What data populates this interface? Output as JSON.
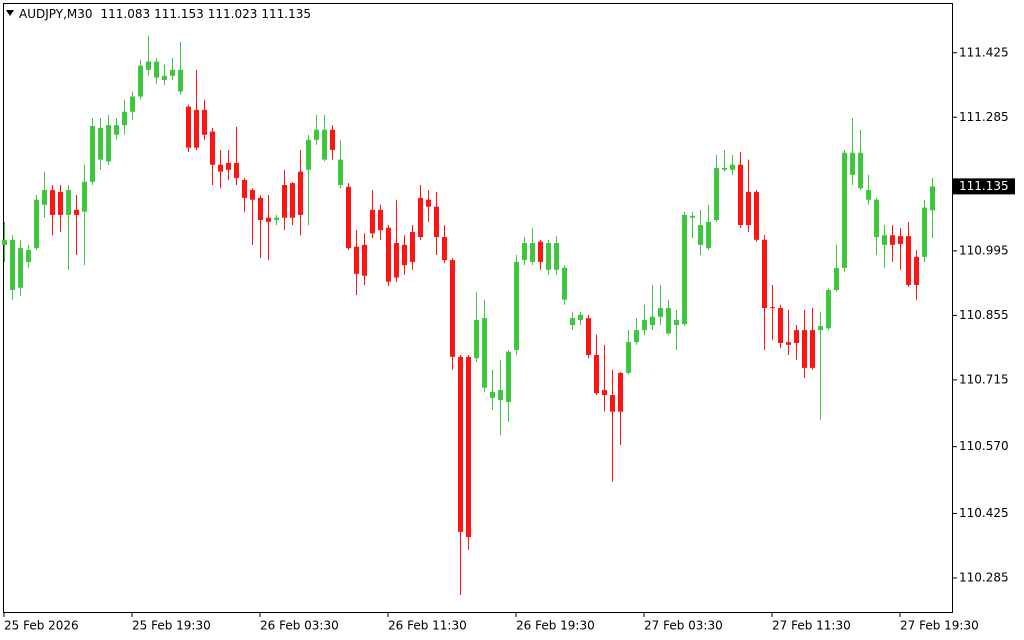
{
  "chart_data": {
    "type": "candlestick",
    "title": "AUDJPY,M30",
    "categories": [
      "25 Feb 2026",
      null,
      null,
      null,
      null,
      null,
      null,
      null,
      null,
      null,
      null,
      null,
      null,
      null,
      null,
      null,
      "25 Feb 19:30",
      null,
      null,
      null,
      null,
      null,
      null,
      null,
      null,
      null,
      null,
      null,
      null,
      null,
      null,
      null,
      "26 Feb 03:30",
      null,
      null,
      null,
      null,
      null,
      null,
      null,
      null,
      null,
      null,
      null,
      null,
      null,
      null,
      null,
      "26 Feb 11:30",
      null,
      null,
      null,
      null,
      null,
      null,
      null,
      null,
      null,
      null,
      null,
      null,
      null,
      null,
      null,
      "26 Feb 19:30",
      null,
      null,
      null,
      null,
      null,
      null,
      null,
      null,
      null,
      null,
      null,
      null,
      null,
      null,
      null,
      "27 Feb 03:30",
      null,
      null,
      null,
      null,
      null,
      null,
      null,
      null,
      null,
      null,
      null,
      null,
      null,
      null,
      null,
      "27 Feb 11:30",
      null,
      null,
      null,
      null,
      null,
      null,
      null,
      null,
      null,
      null,
      null,
      null,
      null,
      null,
      null,
      "27 Feb 19:30",
      null,
      null,
      null,
      null
    ],
    "open": [
      111.008,
      110.91,
      110.915,
      110.971,
      111.001,
      111.095,
      111.127,
      111.123,
      111.073,
      111.084,
      111.08,
      111.145,
      111.193,
      111.189,
      111.247,
      111.268,
      111.297,
      111.33,
      111.388,
      111.371,
      111.366,
      111.375,
      111.341,
      111.308,
      111.301,
      111.301,
      111.254,
      111.182,
      111.186,
      111.186,
      111.149,
      111.127,
      111.11,
      111.067,
      111.062,
      111.138,
      111.142,
      111.167,
      111.171,
      111.236,
      111.193,
      111.258,
      111.138,
      111.134,
      111.004,
      111.008,
      111.084,
      111.084,
      111.045,
      111.012,
      111.008,
      111.036,
      111.11,
      111.106,
      111.091,
      111.025,
      110.975,
      110.765,
      110.765,
      110.762,
      110.698,
      110.676,
      110.671,
      110.667,
      110.78,
      110.975,
      110.971,
      111.015,
      110.954,
      110.954,
      110.889,
      110.834,
      110.845,
      110.849,
      110.769,
      110.693,
      110.682,
      110.73,
      110.73,
      110.797,
      110.823,
      110.834,
      110.852,
      110.816,
      110.834,
      110.836,
      111.067,
      111.008,
      111.001,
      111.062,
      111.171,
      111.171,
      111.182,
      111.123,
      111.123,
      111.019,
      110.873,
      110.871,
      110.797,
      110.823,
      110.823,
      110.823,
      110.823,
      110.827,
      110.91,
      110.958,
      111.16,
      111.131,
      111.106,
      111.025,
      111.008,
      111.029,
      111.027,
      111.027,
      110.982,
      110.982,
      111.083
    ],
    "high": [
      111.058,
      111.029,
      111.019,
      111.008,
      111.116,
      111.167,
      111.138,
      111.138,
      111.138,
      111.116,
      111.182,
      111.283,
      111.283,
      111.29,
      111.283,
      111.323,
      111.341,
      111.41,
      111.462,
      111.414,
      111.399,
      111.414,
      111.449,
      111.312,
      111.388,
      111.323,
      111.262,
      111.214,
      111.214,
      111.264,
      111.153,
      111.131,
      111.116,
      111.116,
      111.073,
      111.171,
      111.145,
      111.214,
      111.247,
      111.29,
      111.29,
      111.268,
      111.236,
      111.142,
      111.04,
      111.033,
      111.127,
      111.095,
      111.051,
      111.106,
      111.029,
      111.051,
      111.138,
      111.127,
      111.123,
      111.051,
      110.979,
      110.769,
      110.769,
      110.906,
      110.889,
      110.737,
      110.758,
      110.78,
      110.986,
      111.025,
      111.045,
      111.019,
      111.019,
      111.027,
      110.964,
      110.863,
      110.863,
      110.856,
      110.813,
      110.791,
      110.737,
      110.732,
      110.823,
      110.849,
      110.878,
      110.921,
      110.921,
      110.889,
      110.867,
      111.08,
      111.08,
      111.084,
      111.095,
      111.203,
      111.214,
      111.203,
      111.21,
      111.193,
      111.127,
      111.029,
      110.921,
      110.878,
      110.867,
      110.834,
      110.867,
      110.871,
      110.863,
      110.915,
      111.008,
      111.214,
      111.283,
      111.258,
      111.16,
      111.11,
      111.051,
      111.051,
      111.045,
      111.058,
      110.997,
      111.106,
      111.153
    ],
    "low": [
      110.971,
      110.889,
      110.897,
      110.958,
      110.997,
      111.067,
      111.029,
      111.036,
      110.954,
      110.986,
      110.964,
      111.138,
      111.171,
      111.182,
      111.236,
      111.247,
      111.279,
      111.323,
      111.375,
      111.357,
      111.355,
      111.366,
      111.334,
      111.21,
      111.214,
      111.236,
      111.138,
      111.131,
      111.149,
      111.138,
      111.08,
      111.008,
      110.979,
      110.975,
      111.051,
      111.04,
      111.051,
      111.029,
      111.051,
      111.225,
      111.189,
      111.193,
      111.131,
      110.997,
      110.899,
      110.921,
      111.023,
      111.019,
      110.919,
      110.928,
      110.943,
      110.954,
      111.019,
      111.058,
      110.986,
      110.968,
      110.737,
      110.248,
      110.346,
      110.754,
      110.689,
      110.65,
      110.595,
      110.624,
      110.769,
      110.964,
      110.964,
      110.954,
      110.943,
      110.943,
      110.878,
      110.823,
      110.834,
      110.762,
      110.682,
      110.646,
      110.494,
      110.574,
      110.726,
      110.791,
      110.812,
      110.823,
      110.834,
      110.812,
      110.78,
      110.832,
      111.023,
      110.986,
      110.997,
      111.058,
      111.167,
      111.16,
      111.045,
      111.036,
      111.015,
      110.78,
      110.802,
      110.784,
      110.769,
      110.758,
      110.719,
      110.737,
      110.628,
      110.823,
      110.906,
      110.95,
      111.138,
      111.127,
      111.095,
      110.986,
      110.958,
      110.971,
      110.954,
      110.917,
      110.889,
      110.971,
      111.023
    ],
    "close": [
      111.019,
      111.019,
      111.001,
      110.997,
      111.106,
      111.127,
      111.073,
      111.073,
      111.127,
      111.073,
      111.145,
      111.266,
      111.262,
      111.268,
      111.268,
      111.297,
      111.33,
      111.397,
      111.406,
      111.406,
      111.375,
      111.388,
      111.388,
      111.219,
      111.219,
      111.247,
      111.182,
      111.167,
      111.171,
      111.153,
      111.11,
      111.106,
      111.062,
      111.058,
      111.067,
      111.067,
      111.067,
      111.073,
      111.236,
      111.258,
      111.258,
      111.214,
      111.193,
      111.001,
      110.945,
      110.941,
      111.033,
      111.04,
      110.928,
      110.937,
      110.964,
      110.971,
      111.025,
      111.091,
      111.025,
      110.975,
      110.765,
      110.385,
      110.374,
      110.845,
      110.849,
      110.689,
      110.693,
      110.776,
      110.971,
      111.012,
      111.012,
      110.971,
      111.012,
      111.012,
      110.958,
      110.849,
      110.856,
      110.769,
      110.686,
      110.682,
      110.646,
      110.646,
      110.797,
      110.823,
      110.845,
      110.852,
      110.871,
      110.871,
      110.845,
      111.073,
      111.071,
      111.051,
      111.058,
      111.175,
      111.175,
      111.182,
      111.051,
      111.051,
      111.019,
      110.871,
      110.871,
      110.795,
      110.791,
      110.795,
      110.741,
      110.741,
      110.832,
      110.91,
      110.958,
      111.208,
      111.208,
      111.208,
      111.127,
      111.106,
      111.029,
      111.008,
      111.01,
      110.921,
      110.921,
      111.089,
      111.135
    ],
    "up_color": "#3fc53f",
    "down_color": "#ff1414",
    "ylim": [
      110.209,
      111.533
    ],
    "yticks": [
      110.285,
      110.425,
      {
        "value": 110.57,
        "label": "110.570"
      },
      110.715,
      110.855,
      110.995,
      111.285,
      111.425
    ]
  }
}
